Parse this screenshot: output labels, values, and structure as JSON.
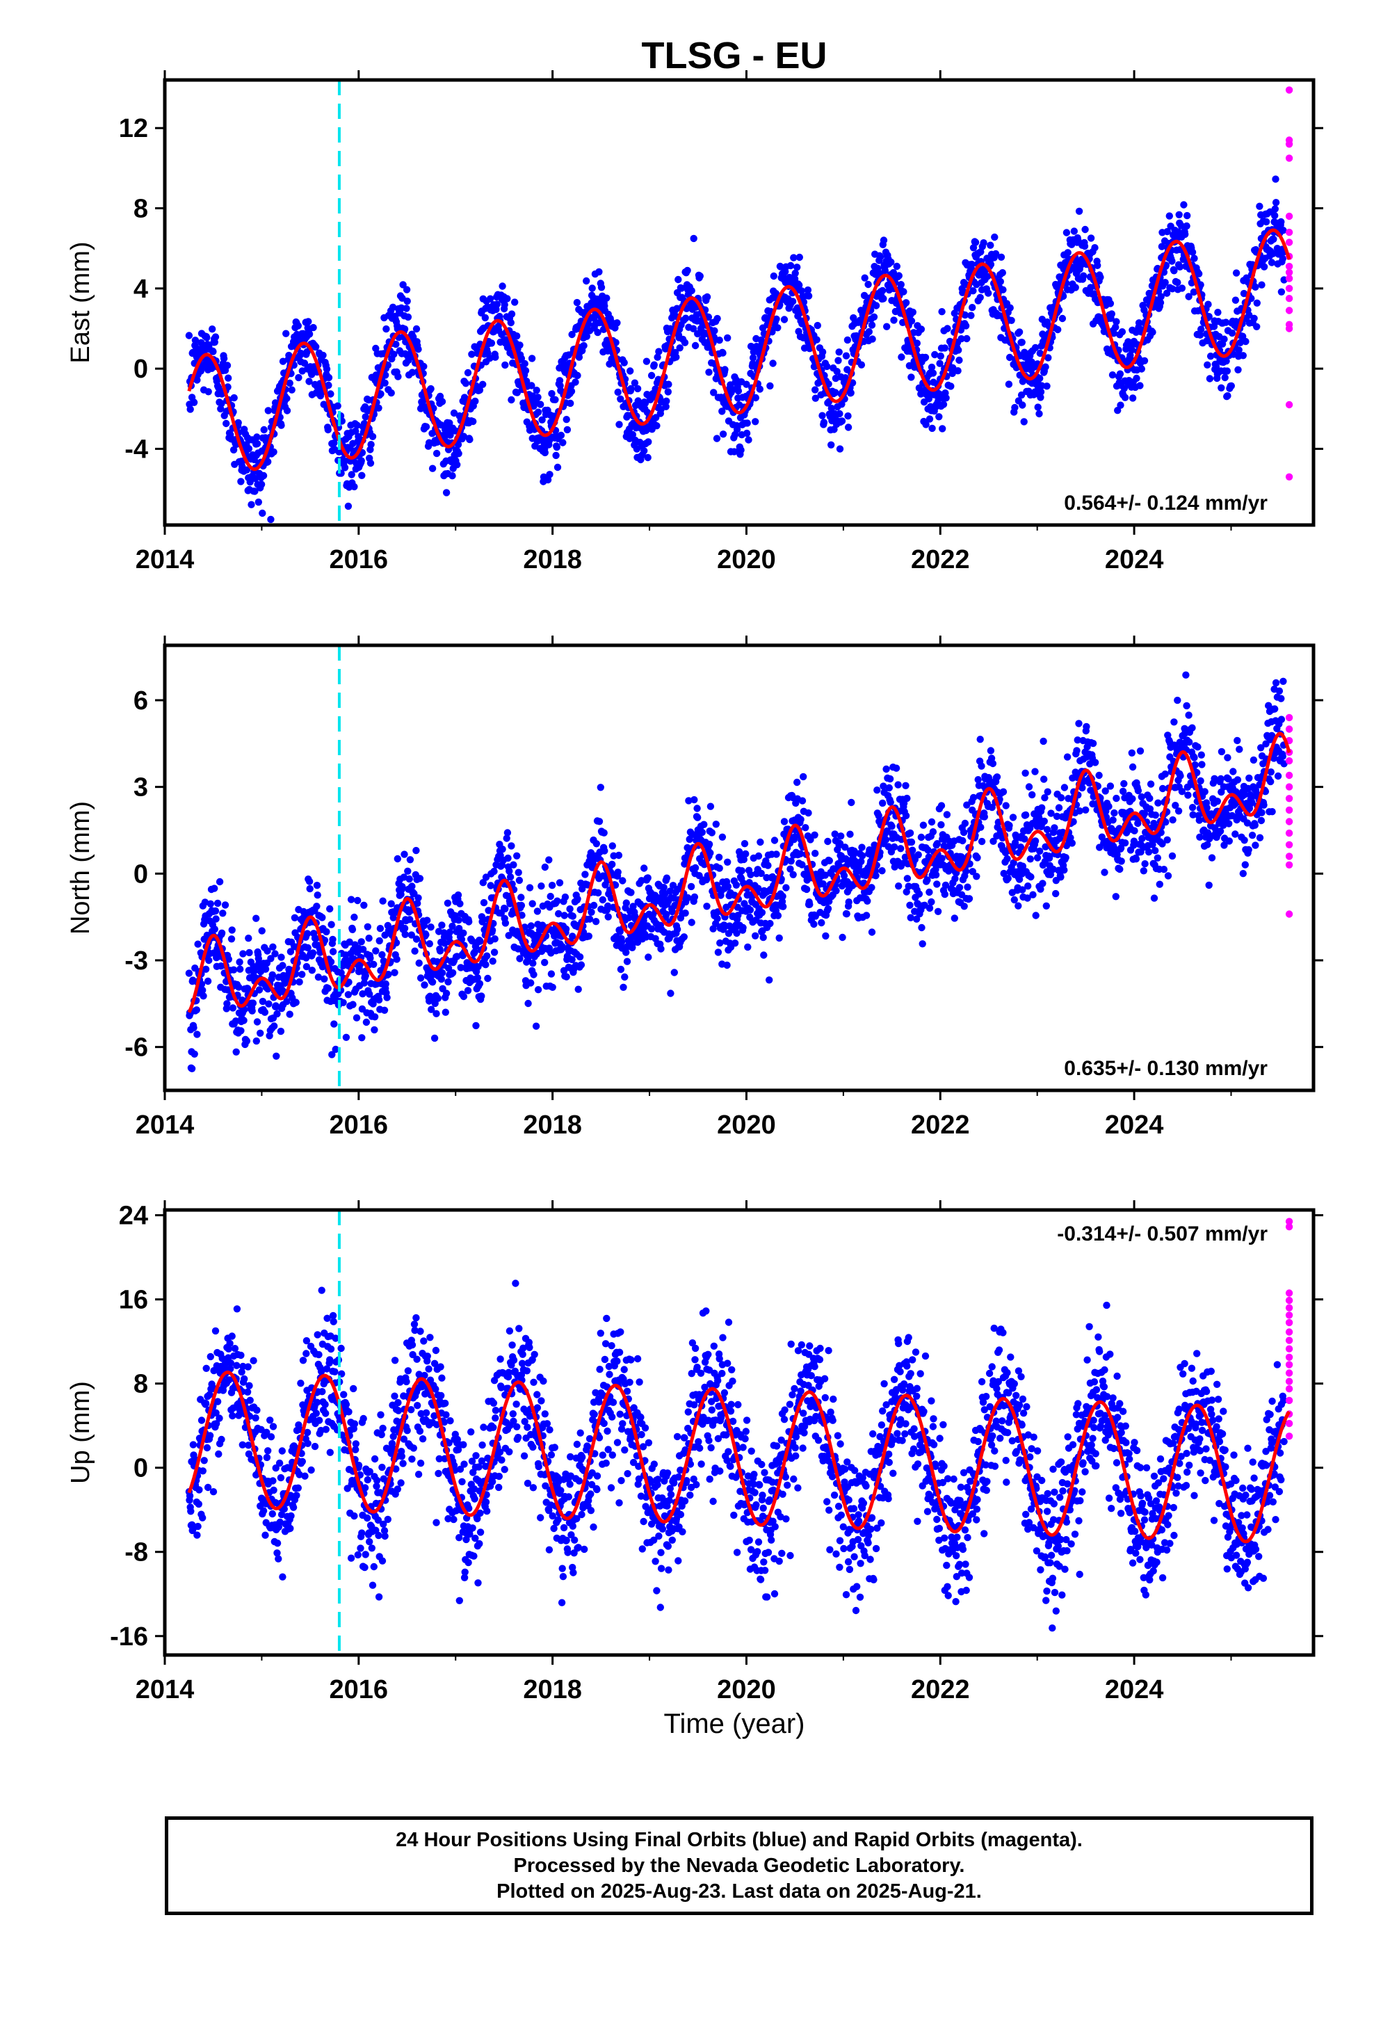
{
  "figure": {
    "title": "TLSG - EU",
    "x_axis_label": "Time (year)",
    "footer": [
      "24 Hour Positions Using Final Orbits (blue) and Rapid Orbits (magenta).",
      "Processed by the Nevada Geodetic Laboratory.",
      "Plotted on 2025-Aug-23. Last data on 2025-Aug-21."
    ]
  },
  "colors": {
    "final_orbits": "#0000ff",
    "rapid_orbits": "#ff00ff",
    "model_fit": "#ff0000",
    "equipment_change": "#00e5ee"
  },
  "chart_data": [
    {
      "type": "scatter",
      "ylabel": "East (mm)",
      "xlim": [
        2014,
        2025.85
      ],
      "ylim": [
        -7.8,
        14.4
      ],
      "x_ticks": [
        "2014",
        "2016",
        "2018",
        "2020",
        "2022",
        "2024"
      ],
      "y_ticks": [
        "-4",
        "0",
        "4",
        "8",
        "12"
      ],
      "y_tick_values": [
        -4,
        0,
        4,
        8,
        12
      ],
      "rate_label": "0.564+/- 0.124 mm/yr",
      "rate_position": "bottom-right",
      "equipment_change_x": 2015.8,
      "data_start": 2014.25,
      "data_end": 2025.6,
      "rapid_start": 2025.55,
      "model": {
        "trend_mm_per_yr": 0.564,
        "offset": -2.4,
        "annual_amplitude": 3.0,
        "annual_phase_peak": 0.43,
        "semiannual_amplitude": 0.0,
        "scatter_sd": 1.0
      },
      "series": [
        {
          "name": "Final Orbits",
          "color": "#0000ff"
        },
        {
          "name": "Rapid Orbits",
          "color": "#ff00ff",
          "values": [
            13.9,
            11.4,
            11.2,
            10.5,
            7.6,
            6.8,
            6.3,
            5.6,
            5.1,
            4.8,
            4.5,
            4.0,
            3.5,
            2.9,
            2.2,
            2.0,
            -1.8,
            -5.4
          ]
        }
      ]
    },
    {
      "type": "scatter",
      "ylabel": "North (mm)",
      "xlim": [
        2014,
        2025.85
      ],
      "ylim": [
        -7.5,
        7.9
      ],
      "x_ticks": [
        "2014",
        "2016",
        "2018",
        "2020",
        "2022",
        "2024"
      ],
      "y_ticks": [
        "-6",
        "-3",
        "0",
        "3",
        "6"
      ],
      "y_tick_values": [
        -6,
        -3,
        0,
        3,
        6
      ],
      "rate_label": "0.635+/- 0.130 mm/yr",
      "rate_position": "bottom-right",
      "equipment_change_x": 2015.8,
      "data_start": 2014.25,
      "data_end": 2025.6,
      "rapid_start": 2025.55,
      "model": {
        "trend_mm_per_yr": 0.635,
        "offset": -4.0,
        "annual_amplitude": 0.9,
        "annual_phase_peak": 0.5,
        "semiannual_amplitude": 0.8,
        "scatter_sd": 0.9
      },
      "series": [
        {
          "name": "Final Orbits",
          "color": "#0000ff"
        },
        {
          "name": "Rapid Orbits",
          "color": "#ff00ff",
          "values": [
            5.4,
            5.0,
            4.6,
            4.2,
            3.9,
            3.4,
            3.0,
            2.6,
            2.2,
            1.8,
            1.4,
            1.0,
            0.6,
            0.3,
            -1.4
          ]
        }
      ]
    },
    {
      "type": "scatter",
      "ylabel": "Up (mm)",
      "xlim": [
        2014,
        2025.85
      ],
      "ylim": [
        -17.8,
        24.5
      ],
      "x_ticks": [
        "2014",
        "2016",
        "2018",
        "2020",
        "2022",
        "2024"
      ],
      "y_ticks": [
        "-16",
        "-8",
        "0",
        "8",
        "16",
        "24"
      ],
      "y_tick_values": [
        -16,
        -8,
        0,
        8,
        16,
        24
      ],
      "rate_label": "-0.314+/- 0.507 mm/yr",
      "rate_position": "top-right",
      "equipment_change_x": 2015.8,
      "data_start": 2014.25,
      "data_end": 2025.6,
      "rapid_start": 2025.55,
      "model": {
        "trend_mm_per_yr": -0.314,
        "offset": 2.8,
        "annual_amplitude": 6.4,
        "annual_phase_peak": 0.65,
        "semiannual_amplitude": 0.0,
        "scatter_sd": 3.2
      },
      "series": [
        {
          "name": "Final Orbits",
          "color": "#0000ff"
        },
        {
          "name": "Rapid Orbits",
          "color": "#ff00ff",
          "values": [
            23.4,
            22.9,
            16.6,
            15.9,
            15.2,
            14.5,
            13.8,
            12.9,
            12.1,
            11.3,
            10.5,
            9.8,
            9.0,
            8.2,
            7.5,
            6.4,
            5.1,
            4.2,
            3.0
          ]
        }
      ]
    }
  ]
}
